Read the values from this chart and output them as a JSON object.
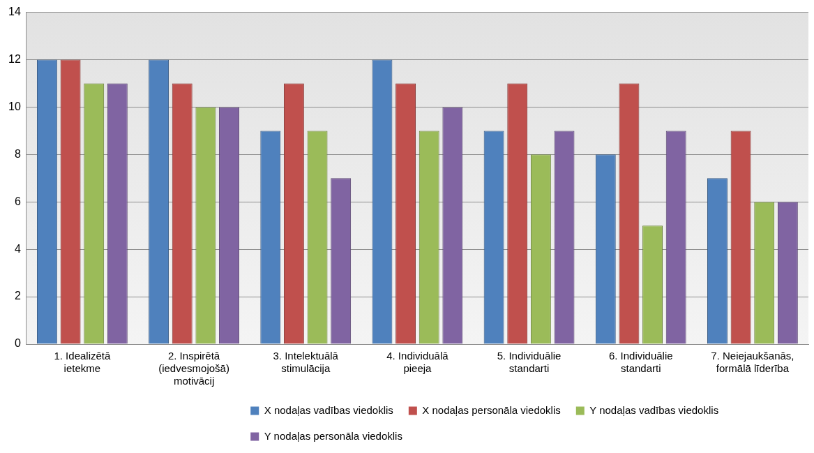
{
  "chart_data": {
    "type": "bar",
    "categories": [
      "1. Idealizētā ietekme",
      "2. Inspirētā (iedvesmojošā) motivācij",
      "3. Intelektuālā stimulācija",
      "4. Individuālā pieeja",
      "5. Individuālie standarti",
      "6. Individuālie standarti",
      "7. Neiejaukšanās, formālā līderība"
    ],
    "series": [
      {
        "name": "X nodaļas vadības viedoklis",
        "color": "#4f81bd",
        "values": [
          12,
          12,
          9,
          12,
          9,
          8,
          7
        ]
      },
      {
        "name": "X nodaļas personāla viedoklis",
        "color": "#c0504d",
        "values": [
          12,
          11,
          11,
          11,
          11,
          11,
          9
        ]
      },
      {
        "name": "Y nodaļas vadības viedoklis",
        "color": "#9bbb59",
        "values": [
          11,
          10,
          9,
          9,
          8,
          5,
          6
        ]
      },
      {
        "name": "Y nodaļas personāla viedoklis",
        "color": "#8064a2",
        "values": [
          11,
          10,
          7,
          10,
          9,
          9,
          6
        ]
      }
    ],
    "ylim": [
      0,
      14
    ],
    "yticks": [
      0,
      2,
      4,
      6,
      8,
      10,
      12,
      14
    ],
    "grid": "y",
    "legend": "bottom"
  }
}
